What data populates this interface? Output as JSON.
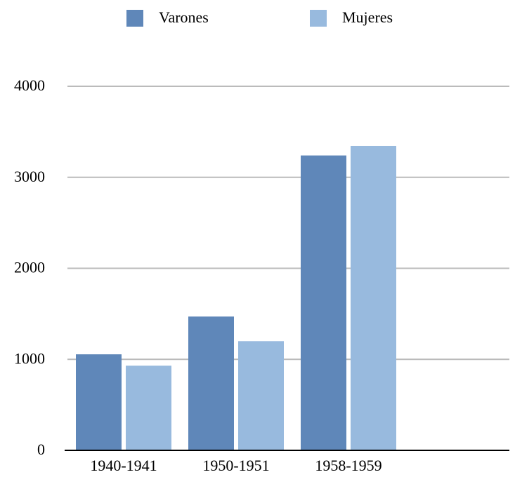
{
  "chart_data": {
    "type": "bar",
    "categories": [
      "1940-1941",
      "1950-1951",
      "1958-1959",
      null
    ],
    "series": [
      {
        "name": "Varones",
        "color": "#5f87b9",
        "values": [
          1055,
          1470,
          3240,
          null
        ]
      },
      {
        "name": "Mujeres",
        "color": "#98bade",
        "values": [
          930,
          1200,
          3345,
          null
        ]
      }
    ],
    "ylim": [
      0,
      4000
    ],
    "yticks": [
      0,
      1000,
      2000,
      3000,
      4000
    ],
    "grid": true,
    "legend": "top"
  }
}
